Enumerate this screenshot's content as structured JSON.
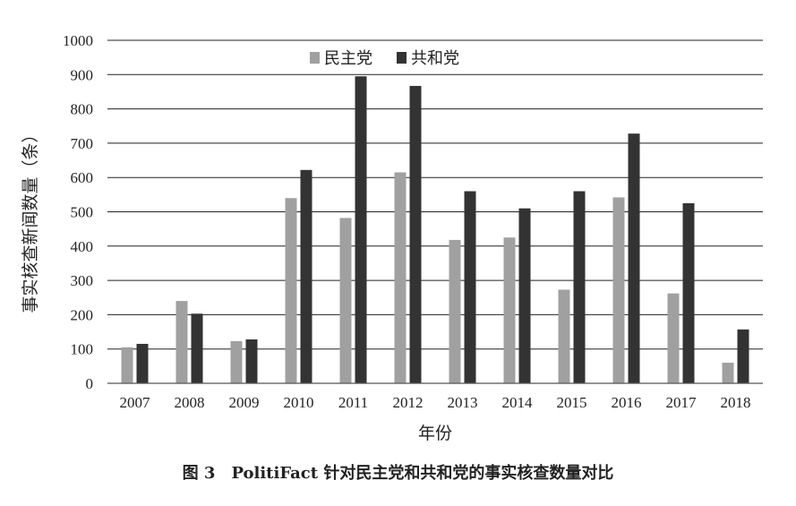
{
  "caption": "图 3　PolitiFact 针对民主党和共和党的事实核查数量对比",
  "chart_data": {
    "type": "bar",
    "categories": [
      "2007",
      "2008",
      "2009",
      "2010",
      "2011",
      "2012",
      "2013",
      "2014",
      "2015",
      "2016",
      "2017",
      "2018"
    ],
    "series": [
      {
        "name": "民主党",
        "color": "#a0a0a0",
        "values": [
          105,
          240,
          123,
          540,
          482,
          615,
          418,
          425,
          273,
          542,
          262,
          60
        ]
      },
      {
        "name": "共和党",
        "color": "#333333",
        "values": [
          115,
          203,
          128,
          622,
          895,
          867,
          560,
          510,
          560,
          728,
          525,
          157
        ]
      }
    ],
    "xlabel": "年份",
    "ylabel": "事实核查新闻数量（条）",
    "ylim": [
      0,
      1000
    ],
    "yticks": [
      0,
      100,
      200,
      300,
      400,
      500,
      600,
      700,
      800,
      900,
      1000
    ],
    "grid": true,
    "legend_position": "top-center"
  }
}
